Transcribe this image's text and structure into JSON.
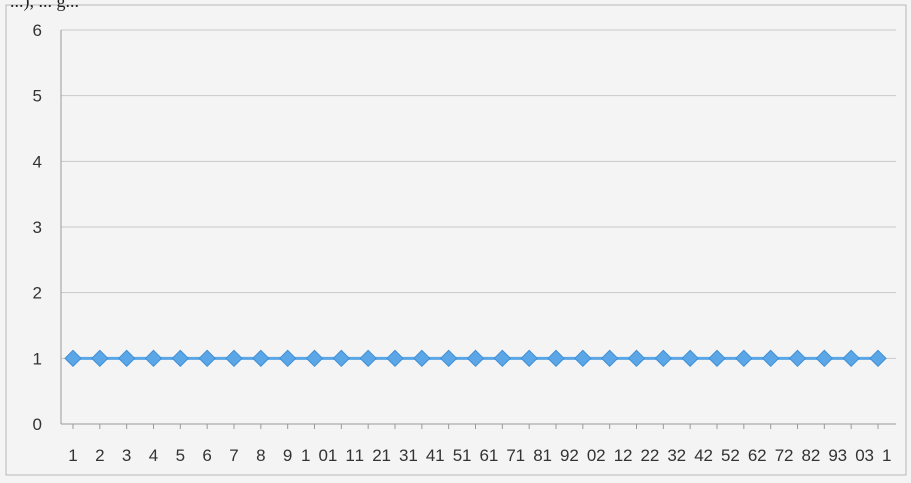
{
  "top_fragment": "...), ... g...",
  "chart_data": {
    "type": "line",
    "title": "",
    "xlabel": "",
    "ylabel": "",
    "x": [
      1,
      2,
      3,
      4,
      5,
      6,
      7,
      8,
      9,
      10,
      11,
      12,
      13,
      14,
      15,
      16,
      17,
      18,
      19,
      20,
      21,
      22,
      23,
      24,
      25,
      26,
      27,
      28,
      29,
      30,
      31
    ],
    "series": [
      {
        "values": [
          1,
          1,
          1,
          1,
          1,
          1,
          1,
          1,
          1,
          1,
          1,
          1,
          1,
          1,
          1,
          1,
          1,
          1,
          1,
          1,
          1,
          1,
          1,
          1,
          1,
          1,
          1,
          1,
          1,
          1,
          1
        ],
        "color": "#5aa6e6",
        "marker": "diamond"
      }
    ],
    "ylim": [
      0,
      6
    ],
    "yticks": [
      0,
      1,
      2,
      3,
      4,
      5,
      6
    ],
    "grid": true,
    "legend": "none"
  }
}
